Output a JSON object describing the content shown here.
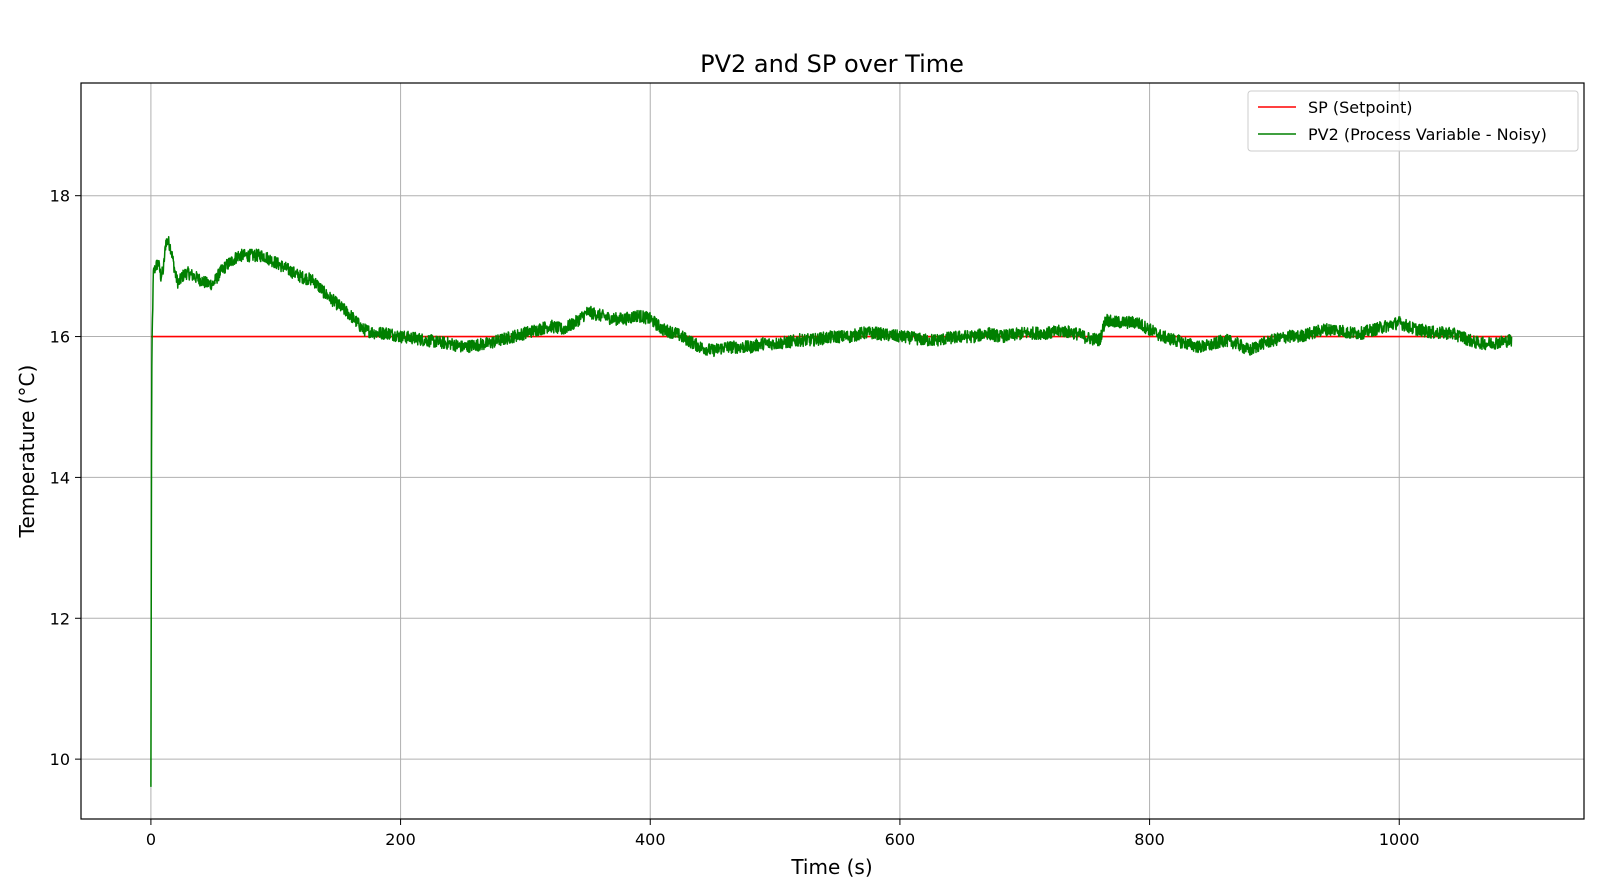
{
  "chart_data": {
    "type": "line",
    "title": "PV2 and SP over Time",
    "xlabel": "Time (s)",
    "ylabel": "Temperature (°C)",
    "xlim": [
      -56,
      1148
    ],
    "ylim": [
      9.15,
      19.6
    ],
    "xticks": [
      0,
      200,
      400,
      600,
      800,
      1000
    ],
    "xtick_labels": [
      "0",
      "200",
      "400",
      "600",
      "800",
      "1000"
    ],
    "yticks": [
      10,
      12,
      14,
      16,
      18
    ],
    "ytick_labels": [
      "10",
      "12",
      "14",
      "16",
      "18"
    ],
    "grid": true,
    "legend_position": "top-right",
    "colors": {
      "sp": "#ff0000",
      "pv": "#008000"
    },
    "series": [
      {
        "name": "SP (Setpoint)",
        "color": "#ff0000",
        "x": [
          0,
          1090
        ],
        "y": [
          16.0,
          16.0
        ]
      },
      {
        "name": "PV2 (Process Variable - Noisy)",
        "color": "#008000",
        "noise_amplitude": 0.09,
        "x": [
          0,
          0.3,
          0.6,
          1,
          2,
          4,
          6,
          8,
          10,
          12,
          14,
          16,
          18,
          20,
          22,
          25,
          28,
          30,
          35,
          40,
          45,
          50,
          55,
          60,
          70,
          80,
          90,
          100,
          110,
          120,
          130,
          140,
          150,
          160,
          170,
          180,
          190,
          200,
          210,
          220,
          230,
          240,
          250,
          260,
          270,
          280,
          290,
          300,
          310,
          320,
          330,
          340,
          350,
          360,
          370,
          380,
          390,
          400,
          410,
          420,
          430,
          440,
          450,
          460,
          470,
          480,
          490,
          500,
          510,
          520,
          530,
          540,
          550,
          560,
          570,
          580,
          590,
          600,
          610,
          620,
          630,
          640,
          650,
          660,
          670,
          680,
          690,
          700,
          710,
          720,
          730,
          740,
          750,
          760,
          765,
          770,
          780,
          790,
          800,
          810,
          820,
          830,
          840,
          850,
          860,
          870,
          880,
          885,
          890,
          900,
          910,
          920,
          930,
          940,
          950,
          960,
          970,
          980,
          990,
          1000,
          1010,
          1020,
          1030,
          1040,
          1050,
          1060,
          1070,
          1080,
          1090
        ],
        "y": [
          9.6,
          12.5,
          15.3,
          16.0,
          16.9,
          17.0,
          17.05,
          16.85,
          16.95,
          17.35,
          17.35,
          17.25,
          17.05,
          16.85,
          16.75,
          16.85,
          16.9,
          16.9,
          16.85,
          16.8,
          16.75,
          16.75,
          16.9,
          17.0,
          17.15,
          17.15,
          17.15,
          17.05,
          16.95,
          16.85,
          16.8,
          16.6,
          16.45,
          16.3,
          16.1,
          16.05,
          16.05,
          16.0,
          15.98,
          15.95,
          15.92,
          15.9,
          15.85,
          15.88,
          15.9,
          15.95,
          16.0,
          16.05,
          16.1,
          16.15,
          16.1,
          16.2,
          16.35,
          16.3,
          16.25,
          16.25,
          16.3,
          16.25,
          16.1,
          16.05,
          15.95,
          15.85,
          15.8,
          15.85,
          15.85,
          15.85,
          15.9,
          15.9,
          15.92,
          15.95,
          15.95,
          15.98,
          16.0,
          16.0,
          16.05,
          16.05,
          16.02,
          16.0,
          15.98,
          15.95,
          15.95,
          15.98,
          16.0,
          16.0,
          16.05,
          16.0,
          16.02,
          16.05,
          16.05,
          16.05,
          16.08,
          16.05,
          15.98,
          15.95,
          16.25,
          16.2,
          16.2,
          16.2,
          16.1,
          16.0,
          15.95,
          15.9,
          15.85,
          15.88,
          15.95,
          15.9,
          15.8,
          15.85,
          15.9,
          15.95,
          16.0,
          16.0,
          16.05,
          16.1,
          16.1,
          16.05,
          16.05,
          16.1,
          16.15,
          16.2,
          16.12,
          16.08,
          16.05,
          16.05,
          16.0,
          15.92,
          15.9,
          15.92,
          15.95
        ]
      }
    ]
  }
}
